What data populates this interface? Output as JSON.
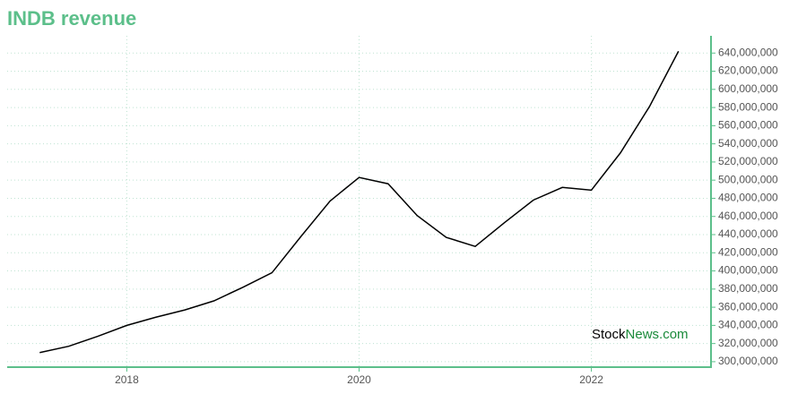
{
  "chart_data": {
    "type": "line",
    "title": "INDB revenue",
    "watermark": [
      "Stock",
      "News.com"
    ],
    "x": [
      2017.25,
      2017.5,
      2017.75,
      2018,
      2018.25,
      2018.5,
      2018.75,
      2019,
      2019.25,
      2019.5,
      2019.75,
      2020,
      2020.25,
      2020.5,
      2020.75,
      2021,
      2021.25,
      2021.5,
      2021.75,
      2022,
      2022.25,
      2022.5,
      2022.75
    ],
    "series": [
      {
        "name": "INDB revenue",
        "color": "#000000",
        "values": [
          310000000,
          317000000,
          328000000,
          340000000,
          349000000,
          357000000,
          367000000,
          382000000,
          398000000,
          438000000,
          477000000,
          503000000,
          496000000,
          461000000,
          437000000,
          427000000,
          453000000,
          478000000,
          492000000,
          489000000,
          530000000,
          581000000,
          642000000
        ]
      }
    ],
    "xlim": [
      2016.97,
      2023.03
    ],
    "xticks": [
      2018,
      2020,
      2022
    ],
    "ylim": [
      294000000,
      659000000
    ],
    "yticks": [
      {
        "value": 300000000,
        "label": "300,000,000"
      },
      {
        "value": 320000000,
        "label": "320,000,000"
      },
      {
        "value": 340000000,
        "label": "340,000,000"
      },
      {
        "value": 360000000,
        "label": "360,000,000"
      },
      {
        "value": 380000000,
        "label": "380,000,000"
      },
      {
        "value": 400000000,
        "label": "400,000,000"
      },
      {
        "value": 420000000,
        "label": "420,000,000"
      },
      {
        "value": 440000000,
        "label": "440,000,000"
      },
      {
        "value": 460000000,
        "label": "460,000,000"
      },
      {
        "value": 480000000,
        "label": "480,000,000"
      },
      {
        "value": 500000000,
        "label": "500,000,000"
      },
      {
        "value": 520000000,
        "label": "520,000,000"
      },
      {
        "value": 540000000,
        "label": "540,000,000"
      },
      {
        "value": 560000000,
        "label": "560,000,000"
      },
      {
        "value": 580000000,
        "label": "580,000,000"
      },
      {
        "value": 600000000,
        "label": "600,000,000"
      },
      {
        "value": 620000000,
        "label": "620,000,000"
      },
      {
        "value": 640000000,
        "label": "640,000,000"
      }
    ],
    "grid": true,
    "axis_color": "#5cbf8a"
  }
}
